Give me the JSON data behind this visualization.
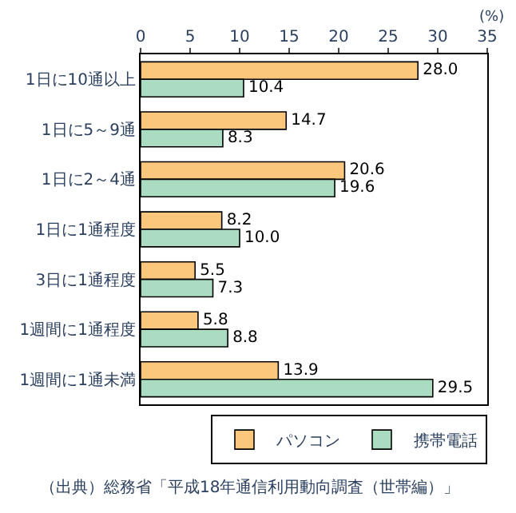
{
  "chart_data": {
    "type": "bar",
    "orientation": "horizontal",
    "xlabel": "(%)",
    "categories": [
      "1日に10通以上",
      "1日に5～9通",
      "1日に2～4通",
      "1日に1通程度",
      "3日に1通程度",
      "1週間に1通程度",
      "1週間に1通未満"
    ],
    "series": [
      {
        "name": "パソコン",
        "color": "#fac77d",
        "values": [
          28.0,
          14.7,
          20.6,
          8.2,
          5.5,
          5.8,
          13.9
        ],
        "value_labels": [
          "28.0",
          "14.7",
          "20.6",
          "8.2",
          "5.5",
          "5.8",
          "13.9"
        ]
      },
      {
        "name": "携帯電話",
        "color": "#a9dcc0",
        "values": [
          10.4,
          8.3,
          19.6,
          10.0,
          7.3,
          8.8,
          29.5
        ],
        "value_labels": [
          "10.4",
          "8.3",
          "19.6",
          "10.0",
          "7.3",
          "8.8",
          "29.5"
        ]
      }
    ],
    "xlim": [
      0,
      35
    ],
    "xticks": [
      0,
      5,
      10,
      15,
      20,
      25,
      30,
      35
    ],
    "legend": "bottom",
    "annotations": [
      "（出典）総務省「平成18年通信利用動向調査（世帯編）」"
    ]
  }
}
